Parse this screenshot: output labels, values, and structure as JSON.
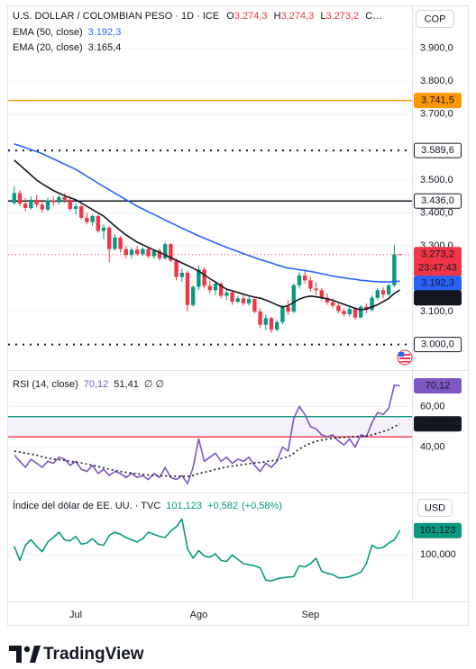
{
  "logo": "TradingView",
  "chart_data": [
    {
      "type": "candlestick",
      "title": "U.S. DOLLAR / COLOMBIAN PESO · 1D · ICE",
      "readout": [
        {
          "key": "O",
          "label": "3.274,3"
        },
        {
          "key": "H",
          "label": "3.274,3"
        },
        {
          "key": "L",
          "label": "3.273,2"
        },
        {
          "key": "C…"
        }
      ],
      "currency": "COP",
      "up_color": "#089981",
      "down_color": "#f23645",
      "grid": true,
      "categories": [
        null,
        null,
        null,
        null,
        null,
        null,
        null,
        null,
        null,
        null,
        null,
        "Jul",
        null,
        null,
        null,
        null,
        null,
        null,
        null,
        null,
        null,
        null,
        null,
        null,
        null,
        null,
        null,
        null,
        null,
        null,
        null,
        null,
        null,
        "Ago",
        null,
        null,
        null,
        null,
        null,
        null,
        null,
        null,
        null,
        null,
        null,
        null,
        null,
        null,
        null,
        null,
        null,
        null,
        null,
        "Sep",
        null,
        null,
        null,
        null,
        null,
        null,
        null,
        null,
        null,
        null,
        null,
        null,
        null,
        null,
        null,
        null
      ],
      "open": [
        3430,
        3460,
        3428,
        3415,
        3440,
        3425,
        3410,
        3438,
        3432,
        3448,
        3440,
        3412,
        3420,
        3385,
        3372,
        3390,
        3345,
        3355,
        3290,
        3325,
        3290,
        3272,
        3288,
        3275,
        3290,
        3268,
        3285,
        3262,
        3305,
        3255,
        3205,
        3218,
        3120,
        3175,
        3228,
        3178,
        3165,
        3185,
        3148,
        3158,
        3130,
        3140,
        3125,
        3138,
        3100,
        3060,
        3080,
        3045,
        3068,
        3115,
        3100,
        3180,
        3210,
        3195,
        3170,
        3165,
        3142,
        3128,
        3118,
        3102,
        3092,
        3108,
        3082,
        3115,
        3105,
        3142,
        3165,
        3152,
        3180,
        3274.3
      ],
      "high": [
        3480,
        3470,
        3445,
        3450,
        3455,
        3440,
        3445,
        3450,
        3455,
        3460,
        3452,
        3430,
        3425,
        3400,
        3395,
        3395,
        3365,
        3360,
        3335,
        3330,
        3300,
        3295,
        3300,
        3295,
        3298,
        3290,
        3292,
        3310,
        3308,
        3262,
        3230,
        3225,
        3180,
        3240,
        3235,
        3195,
        3190,
        3190,
        3165,
        3165,
        3148,
        3150,
        3145,
        3140,
        3110,
        3090,
        3085,
        3075,
        3120,
        3135,
        3185,
        3220,
        3225,
        3205,
        3190,
        3172,
        3155,
        3140,
        3125,
        3110,
        3118,
        3112,
        3120,
        3125,
        3150,
        3172,
        3175,
        3185,
        3302,
        3274.3
      ],
      "low": [
        3425,
        3420,
        3405,
        3410,
        3418,
        3400,
        3405,
        3420,
        3425,
        3430,
        3405,
        3395,
        3380,
        3365,
        3360,
        3340,
        3320,
        3250,
        3285,
        3280,
        3260,
        3262,
        3270,
        3268,
        3262,
        3260,
        3255,
        3258,
        3250,
        3195,
        3190,
        3100,
        3115,
        3165,
        3170,
        3155,
        3150,
        3140,
        3135,
        3120,
        3125,
        3118,
        3118,
        3095,
        3050,
        3045,
        3035,
        3040,
        3062,
        3090,
        3095,
        3170,
        3185,
        3160,
        3150,
        3135,
        3120,
        3110,
        3095,
        3085,
        3085,
        3075,
        3080,
        3095,
        3100,
        3135,
        3140,
        3148,
        3175,
        3273.2
      ],
      "close": [
        3460,
        3428,
        3415,
        3440,
        3425,
        3410,
        3438,
        3432,
        3448,
        3440,
        3412,
        3420,
        3385,
        3372,
        3390,
        3345,
        3355,
        3290,
        3325,
        3290,
        3272,
        3288,
        3275,
        3290,
        3268,
        3285,
        3262,
        3305,
        3255,
        3205,
        3218,
        3120,
        3175,
        3228,
        3178,
        3165,
        3185,
        3148,
        3158,
        3130,
        3140,
        3125,
        3138,
        3100,
        3060,
        3080,
        3045,
        3068,
        3115,
        3100,
        3180,
        3210,
        3195,
        3170,
        3165,
        3142,
        3128,
        3118,
        3102,
        3092,
        3108,
        3082,
        3115,
        3105,
        3142,
        3165,
        3152,
        3180,
        3274,
        3273.2
      ],
      "close_label": "3.273,2",
      "countdown": "23:47:43",
      "series": [
        {
          "name": "EMA (50, close)",
          "color": "#2962ff",
          "value_label": "3.192,3",
          "values": [
            3610,
            3604,
            3598,
            3592,
            3586,
            3580,
            3572,
            3564,
            3556,
            3548,
            3540,
            3532,
            3522,
            3511,
            3501,
            3490,
            3480,
            3470,
            3460,
            3450,
            3440,
            3430,
            3420,
            3412,
            3403,
            3395,
            3387,
            3378,
            3370,
            3362,
            3354,
            3346,
            3338,
            3330,
            3323,
            3316,
            3309,
            3302,
            3295,
            3289,
            3283,
            3276,
            3270,
            3264,
            3258,
            3253,
            3248,
            3242,
            3237,
            3232,
            3230,
            3227,
            3225,
            3222,
            3219,
            3215,
            3212,
            3208,
            3205,
            3203,
            3200,
            3198,
            3195,
            3194,
            3192,
            3191,
            3190,
            3190,
            3192,
            3192.3
          ]
        },
        {
          "name": "EMA (20, close)",
          "color": "#131722",
          "value_label": "3.165,4",
          "values": [
            3560,
            3545,
            3530,
            3515,
            3500,
            3488,
            3478,
            3468,
            3460,
            3452,
            3446,
            3440,
            3430,
            3420,
            3410,
            3400,
            3390,
            3375,
            3360,
            3346,
            3333,
            3322,
            3311,
            3303,
            3295,
            3287,
            3280,
            3272,
            3264,
            3256,
            3248,
            3240,
            3232,
            3223,
            3212,
            3200,
            3190,
            3178,
            3168,
            3163,
            3158,
            3153,
            3148,
            3144,
            3141,
            3135,
            3128,
            3120,
            3114,
            3118,
            3128,
            3138,
            3144,
            3147,
            3145,
            3142,
            3139,
            3134,
            3128,
            3122,
            3116,
            3110,
            3105,
            3108,
            3114,
            3121,
            3130,
            3140,
            3155,
            3165.4
          ]
        }
      ],
      "levels": [
        {
          "value": 3741.5,
          "label": "3.741,5",
          "color": "#ff9800",
          "style": "solid",
          "label_fill": "#ff9800"
        },
        {
          "value": 3589.6,
          "label": "3.589,6",
          "color": "#131722",
          "style": "dotted",
          "label_fill": "#ffffff"
        },
        {
          "value": 3436.0,
          "label": "3.436,0",
          "color": "#131722",
          "style": "solid",
          "label_fill": "#ffffff"
        },
        {
          "value": 3000.0,
          "label": "3.000,0",
          "color": "#131722",
          "style": "dotted",
          "label_fill": "#ffffff"
        }
      ],
      "ylim": [
        2925,
        4025
      ],
      "yticks": [
        {
          "value": 3900,
          "label": "3.900,0"
        },
        {
          "value": 3800,
          "label": "3.800,0"
        },
        {
          "value": 3700,
          "label": "3.700,0"
        },
        {
          "value": 3500,
          "label": "3.500,0"
        },
        {
          "value": 3400,
          "label": "3.400,0"
        },
        {
          "value": 3300,
          "label": "3.300,0"
        },
        {
          "value": 3100,
          "label": "3.100,0"
        }
      ]
    },
    {
      "type": "line",
      "title": "RSI (14, close)",
      "extra": "∅ ∅",
      "grid": true,
      "bands": [
        {
          "value": 55,
          "color": "#089981"
        },
        {
          "value": 45,
          "color": "#f23645"
        }
      ],
      "band_fill": "#7e57c2",
      "series": [
        {
          "color": "#7e57c2",
          "style": "solid",
          "value_label": "70,12",
          "values": [
            36,
            33,
            30,
            34,
            32,
            30,
            33,
            32,
            35,
            34,
            31,
            33,
            29,
            28,
            31,
            27,
            29,
            26,
            28,
            27,
            25,
            27,
            25,
            26,
            24,
            27,
            25,
            30,
            25,
            24,
            26,
            22,
            30,
            44,
            33,
            35,
            37,
            33,
            35,
            32,
            34,
            33,
            35,
            31,
            28,
            32,
            30,
            33,
            40,
            38,
            54,
            60,
            56,
            50,
            49,
            46,
            45,
            46,
            43,
            41,
            44,
            40,
            46,
            45,
            52,
            57,
            56,
            59,
            70.5,
            70.12
          ]
        },
        {
          "color": "#131722",
          "style": "dotted",
          "value_label": "51,41",
          "values": [
            38,
            37.5,
            37,
            36.5,
            36,
            35.2,
            34.5,
            34,
            33.8,
            33.5,
            33,
            32.6,
            32.2,
            31.6,
            31,
            30.4,
            29.8,
            29,
            28.5,
            28,
            27.6,
            27.2,
            26.8,
            26.5,
            26.2,
            26,
            25.8,
            25.8,
            25.7,
            25.6,
            25.6,
            25.5,
            26,
            27,
            27.6,
            28.2,
            29,
            29.6,
            30.2,
            30.6,
            31,
            31.4,
            31.8,
            32.2,
            32.4,
            32.8,
            33.2,
            33.6,
            34.5,
            35.2,
            37,
            39,
            40.6,
            41.8,
            42.8,
            43.4,
            43.9,
            44.3,
            44.6,
            44.8,
            45,
            45.1,
            45.3,
            45.5,
            46,
            46.8,
            47.6,
            48.5,
            50,
            51.41
          ]
        }
      ],
      "ylim": [
        18.5,
        77
      ],
      "yticks": [
        {
          "value": 60,
          "label": "60,00"
        },
        {
          "value": 40,
          "label": "40,00"
        }
      ]
    },
    {
      "type": "line",
      "title": "Índice del dólar de EE. UU. · TVC",
      "readout": [
        "+0,582",
        "(+0,58%)"
      ],
      "currency": "USD",
      "grid": true,
      "series": [
        {
          "color": "#089981",
          "style": "solid",
          "value_label": "101,123",
          "values": [
            100.4,
            99.75,
            100.45,
            100.7,
            100.4,
            100.15,
            100.6,
            100.8,
            101.05,
            100.7,
            100.65,
            100.85,
            100.5,
            100.55,
            100.75,
            100.5,
            100.45,
            100.9,
            101.05,
            100.95,
            100.8,
            100.7,
            100.6,
            100.75,
            101.05,
            100.95,
            100.85,
            100.8,
            101.1,
            101.3,
            101.65,
            100.3,
            99.85,
            100.2,
            99.95,
            99.9,
            100.05,
            99.75,
            99.7,
            100.0,
            99.8,
            99.6,
            99.55,
            99.5,
            99.4,
            98.85,
            98.8,
            98.9,
            98.95,
            98.98,
            99.0,
            99.5,
            99.45,
            99.6,
            99.85,
            99.25,
            99.15,
            99.1,
            98.95,
            98.95,
            99.0,
            99.1,
            99.2,
            99.6,
            100.45,
            100.3,
            100.35,
            100.55,
            100.7,
            101.123
          ]
        }
      ],
      "ylim": [
        97.9,
        102.75
      ],
      "yticks": [
        {
          "value": 100,
          "label": "100,000"
        }
      ]
    }
  ]
}
